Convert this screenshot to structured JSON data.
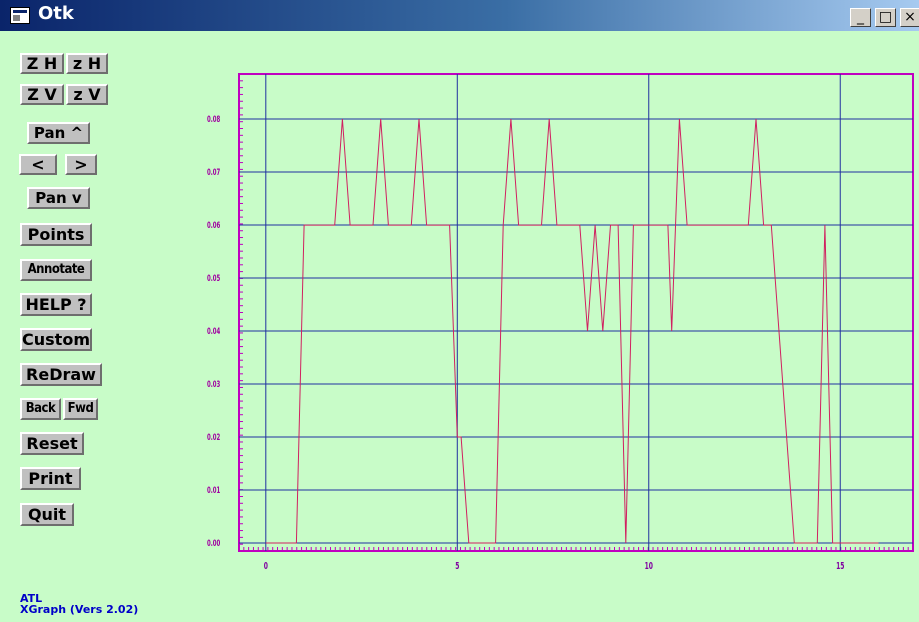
{
  "window": {
    "title": "Otk",
    "minimize": "_",
    "maximize": "□",
    "close": "×"
  },
  "buttons": {
    "zoom_h_out": "Z H",
    "zoom_h_in": "z H",
    "zoom_v_out": "Z V",
    "zoom_v_in": "z V",
    "pan_up": "Pan ^",
    "pan_left": "<",
    "pan_right": ">",
    "pan_down": "Pan v",
    "points": "Points",
    "annotate": "Annotate",
    "help": "HELP ?",
    "custom": "Custom",
    "redraw": "ReDraw",
    "back": "Back",
    "fwd": "Fwd",
    "reset": "Reset",
    "print": "Print",
    "quit": "Quit"
  },
  "footer": {
    "line1": "ATL",
    "line2": "XGraph (Vers 2.02)"
  },
  "colors": {
    "background": "#c8fcc8",
    "frame": "#c000c0",
    "grid": "#2030a0",
    "series": "#d02060",
    "ticklabel": "#a000a0",
    "xticklabel": "#8000a0"
  },
  "chart_data": {
    "type": "line",
    "xlim": [
      -0.7,
      16.9
    ],
    "ylim": [
      -0.0015,
      0.0885
    ],
    "xticks": [
      0,
      5,
      10,
      15
    ],
    "xtick_labels": [
      "0",
      "5",
      "10",
      "15"
    ],
    "yticks": [
      0.0,
      0.01,
      0.02,
      0.03,
      0.04,
      0.05,
      0.06,
      0.07,
      0.08
    ],
    "ytick_labels": [
      "0.00",
      "0.01",
      "0.02",
      "0.03",
      "0.04",
      "0.05",
      "0.06",
      "0.07",
      "0.08"
    ],
    "grid": true,
    "series": [
      {
        "x": [
          0,
          0.8,
          1.0,
          1.8,
          2.0,
          2.2,
          2.8,
          3.0,
          3.2,
          3.8,
          4.0,
          4.2,
          4.8,
          5.0,
          5.1,
          5.3,
          6.0,
          6.2,
          6.4,
          6.6,
          7.2,
          7.4,
          7.6,
          8.2,
          8.4,
          8.6,
          8.8,
          9.0,
          9.2,
          9.4,
          9.6,
          9.8,
          10.0,
          10.5,
          10.6,
          10.8,
          11.0,
          11.2,
          12.6,
          12.8,
          13.0,
          13.2,
          13.8,
          14.4,
          14.6,
          14.8,
          16.0
        ],
        "y": [
          0.0,
          0.0,
          0.06,
          0.06,
          0.08,
          0.06,
          0.06,
          0.08,
          0.06,
          0.06,
          0.08,
          0.06,
          0.06,
          0.02,
          0.02,
          0.0,
          0.0,
          0.06,
          0.08,
          0.06,
          0.06,
          0.08,
          0.06,
          0.06,
          0.04,
          0.06,
          0.04,
          0.06,
          0.06,
          0.0,
          0.06,
          0.06,
          0.06,
          0.06,
          0.04,
          0.08,
          0.06,
          0.06,
          0.06,
          0.08,
          0.06,
          0.06,
          0.0,
          0.0,
          0.06,
          0.0,
          0.0
        ]
      }
    ]
  }
}
